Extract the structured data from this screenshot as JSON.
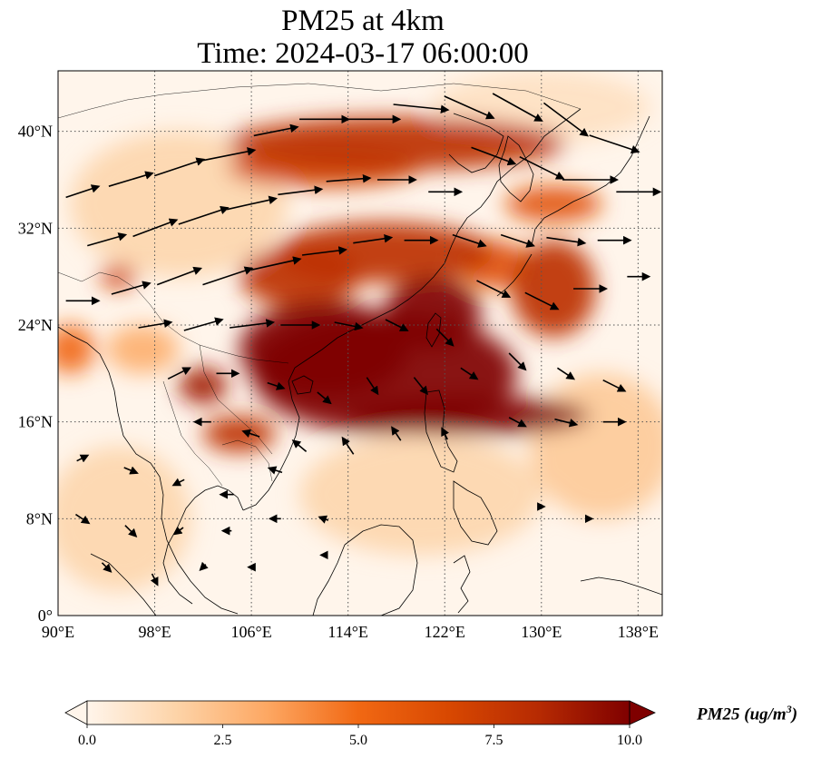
{
  "title": {
    "line1": "PM25 at 4km",
    "line2": "Time: 2024-03-17 06:00:00"
  },
  "map": {
    "lon_range": [
      90,
      140
    ],
    "lat_range": [
      0,
      45
    ],
    "lon_ticks": [
      {
        "value": 90,
        "label": "90°E"
      },
      {
        "value": 98,
        "label": "98°E"
      },
      {
        "value": 106,
        "label": "106°E"
      },
      {
        "value": 114,
        "label": "114°E"
      },
      {
        "value": 122,
        "label": "122°E"
      },
      {
        "value": 130,
        "label": "130°E"
      },
      {
        "value": 138,
        "label": "138°E"
      }
    ],
    "lat_ticks": [
      {
        "value": 0,
        "label": "0°"
      },
      {
        "value": 8,
        "label": "8°N"
      },
      {
        "value": 16,
        "label": "16°N"
      },
      {
        "value": 24,
        "label": "24°N"
      },
      {
        "value": 32,
        "label": "32°N"
      },
      {
        "value": 40,
        "label": "40°N"
      }
    ],
    "gridlines": "dotted",
    "plumes": [
      {
        "lon": 117,
        "lat": 20,
        "rlon": 11,
        "rlat": 5,
        "level": 10
      },
      {
        "lon": 112,
        "lat": 22,
        "rlon": 7,
        "rlat": 4,
        "level": 10
      },
      {
        "lon": 121,
        "lat": 25,
        "rlon": 4,
        "rlat": 3,
        "level": 10
      },
      {
        "lon": 117,
        "lat": 30,
        "rlon": 9,
        "rlat": 2.5,
        "level": 8
      },
      {
        "lon": 110,
        "lat": 28,
        "rlon": 5,
        "rlat": 2.5,
        "level": 8
      },
      {
        "lon": 118,
        "lat": 39,
        "rlon": 14,
        "rlat": 2.2,
        "level": 8
      },
      {
        "lon": 112,
        "lat": 37,
        "rlon": 8,
        "rlat": 1.6,
        "level": 7
      },
      {
        "lon": 124,
        "lat": 16.5,
        "rlon": 10,
        "rlat": 1.6,
        "level": 10
      },
      {
        "lon": 105,
        "lat": 15,
        "rlon": 3,
        "rlat": 1.5,
        "level": 8
      },
      {
        "lon": 102,
        "lat": 19,
        "rlon": 2,
        "rlat": 1.5,
        "level": 9
      },
      {
        "lon": 131,
        "lat": 27,
        "rlon": 3.5,
        "rlat": 4,
        "level": 8
      },
      {
        "lon": 131,
        "lat": 34,
        "rlon": 4,
        "rlat": 1.5,
        "level": 6
      },
      {
        "lon": 126,
        "lat": 29,
        "rlon": 3,
        "rlat": 2,
        "level": 6
      },
      {
        "lon": 95,
        "lat": 28,
        "rlon": 1.5,
        "rlat": 1,
        "level": 7
      },
      {
        "lon": 91,
        "lat": 22,
        "rlon": 2,
        "rlat": 2,
        "level": 5
      },
      {
        "lon": 97,
        "lat": 22,
        "rlon": 3,
        "rlat": 2,
        "level": 3
      },
      {
        "lon": 120,
        "lat": 10,
        "rlon": 10,
        "rlat": 5,
        "level": 1.5
      },
      {
        "lon": 135,
        "lat": 14,
        "rlon": 6,
        "rlat": 6,
        "level": 2
      },
      {
        "lon": 100,
        "lat": 34,
        "rlon": 9,
        "rlat": 6,
        "level": 1.5
      },
      {
        "lon": 95,
        "lat": 8,
        "rlon": 6,
        "rlat": 6,
        "level": 1.5
      },
      {
        "lon": 130,
        "lat": 42,
        "rlon": 9,
        "rlat": 3,
        "level": 1
      }
    ],
    "wind_vectors": [
      [
        92,
        35,
        3,
        1
      ],
      [
        96,
        36,
        4,
        1.2
      ],
      [
        100,
        37,
        4.5,
        1.5
      ],
      [
        104,
        38,
        5,
        1
      ],
      [
        108,
        40,
        4,
        0.8
      ],
      [
        112,
        41,
        4.5,
        0
      ],
      [
        116,
        41,
        5,
        0
      ],
      [
        120,
        42,
        5,
        -0.5
      ],
      [
        124,
        42,
        4.5,
        -2
      ],
      [
        128,
        42,
        4.5,
        -2.5
      ],
      [
        132,
        41,
        4,
        -3
      ],
      [
        136,
        39,
        4.5,
        -1.5
      ],
      [
        126,
        38,
        4,
        -1.5
      ],
      [
        130,
        37,
        4,
        -2
      ],
      [
        134,
        36,
        5,
        0
      ],
      [
        138,
        35,
        4,
        0
      ],
      [
        94,
        31,
        3.5,
        1
      ],
      [
        98,
        32,
        4,
        1.5
      ],
      [
        102,
        33,
        4.5,
        1.5
      ],
      [
        106,
        34,
        4.5,
        1
      ],
      [
        110,
        35,
        4,
        0.5
      ],
      [
        114,
        36,
        4,
        0.3
      ],
      [
        118,
        36,
        3.5,
        0
      ],
      [
        122,
        35,
        3,
        0
      ],
      [
        92,
        26,
        3,
        0
      ],
      [
        96,
        27,
        3.5,
        1
      ],
      [
        100,
        28,
        4,
        1.5
      ],
      [
        104,
        28,
        4.5,
        1.5
      ],
      [
        108,
        29,
        4.5,
        1
      ],
      [
        112,
        30,
        4,
        0.5
      ],
      [
        116,
        31,
        3.5,
        0.5
      ],
      [
        120,
        31,
        3,
        0
      ],
      [
        124,
        31,
        3,
        -1
      ],
      [
        128,
        31,
        3,
        -1
      ],
      [
        132,
        31,
        3.5,
        -0.5
      ],
      [
        136,
        31,
        3,
        0
      ],
      [
        126,
        27,
        3,
        -1.5
      ],
      [
        130,
        26,
        3,
        -1.5
      ],
      [
        134,
        27,
        3,
        0
      ],
      [
        138,
        28,
        2,
        0
      ],
      [
        98,
        24,
        3,
        0.5
      ],
      [
        102,
        24,
        3.5,
        1
      ],
      [
        106,
        24,
        4,
        0.5
      ],
      [
        110,
        24,
        3.5,
        0
      ],
      [
        114,
        24,
        2.5,
        -0.5
      ],
      [
        118,
        24,
        2,
        -1
      ],
      [
        122,
        23,
        1.5,
        -1.5
      ],
      [
        100,
        20,
        2,
        1
      ],
      [
        104,
        20,
        2,
        0
      ],
      [
        108,
        19,
        1.5,
        -0.5
      ],
      [
        112,
        18,
        1.2,
        -1
      ],
      [
        116,
        19,
        1,
        -1.5
      ],
      [
        120,
        19,
        1.2,
        -1.5
      ],
      [
        124,
        20,
        1.5,
        -1
      ],
      [
        128,
        21,
        1.5,
        -1.5
      ],
      [
        132,
        20,
        1.5,
        -1
      ],
      [
        136,
        19,
        2,
        -1
      ],
      [
        128,
        16,
        1.5,
        -0.8
      ],
      [
        132,
        16,
        2,
        -0.5
      ],
      [
        136,
        16,
        2,
        0
      ],
      [
        102,
        16,
        -1.5,
        0
      ],
      [
        106,
        15,
        -1.5,
        0.5
      ],
      [
        110,
        14,
        -1.2,
        1
      ],
      [
        114,
        14,
        -1,
        1.5
      ],
      [
        118,
        15,
        -0.8,
        1.2
      ],
      [
        122,
        15,
        -0.5,
        1
      ],
      [
        92,
        13,
        1,
        0.5
      ],
      [
        96,
        12,
        1.2,
        -0.5
      ],
      [
        100,
        11,
        -1,
        -0.5
      ],
      [
        104,
        10,
        -1.2,
        0
      ],
      [
        108,
        12,
        -1.2,
        0.4
      ],
      [
        92,
        8,
        1.2,
        -0.8
      ],
      [
        96,
        7,
        1,
        -1
      ],
      [
        100,
        7,
        -0.8,
        -0.6
      ],
      [
        104,
        7,
        -0.8,
        0
      ],
      [
        108,
        8,
        -1,
        0
      ],
      [
        112,
        8,
        -0.8,
        0.3
      ],
      [
        94,
        4,
        0.8,
        -0.8
      ],
      [
        98,
        3,
        0.5,
        -1
      ],
      [
        102,
        4,
        -0.5,
        -0.5
      ],
      [
        106,
        4,
        -0.5,
        0
      ],
      [
        112,
        5,
        -0.5,
        0
      ],
      [
        130,
        9,
        0.5,
        0
      ],
      [
        134,
        8,
        0.4,
        0
      ]
    ]
  },
  "colorbar": {
    "min": 0,
    "max": 10,
    "ticks": [
      {
        "value": 0,
        "label": "0.0"
      },
      {
        "value": 2.5,
        "label": "2.5"
      },
      {
        "value": 5,
        "label": "5.0"
      },
      {
        "value": 7.5,
        "label": "7.5"
      },
      {
        "value": 10,
        "label": "10.0"
      }
    ],
    "label": "PM25 (ug/m",
    "label_sup": "3",
    "label_end": ")",
    "extend": "both",
    "colormap": [
      "#fff5eb",
      "#fdd3a7",
      "#fda762",
      "#f16813",
      "#d84801",
      "#b62a02",
      "#7f0000"
    ]
  }
}
